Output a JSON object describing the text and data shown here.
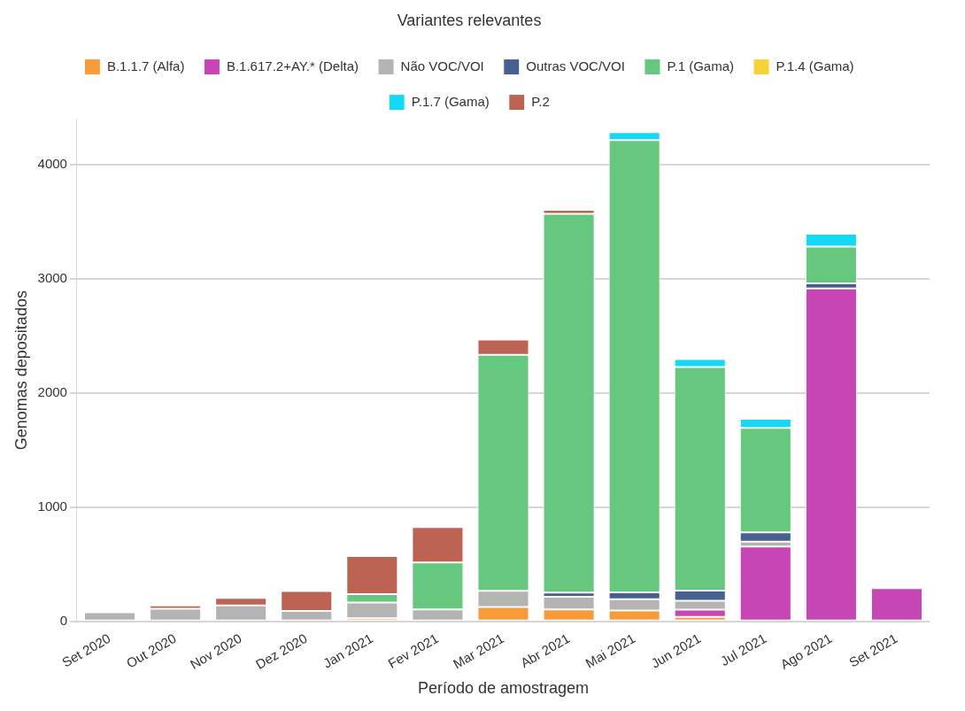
{
  "chart_data": {
    "type": "bar",
    "stacked": true,
    "title": "Variantes relevantes",
    "xlabel": "Período de amostragem",
    "ylabel": "Genomas depositados",
    "categories": [
      "Set 2020",
      "Out 2020",
      "Nov 2020",
      "Dez 2020",
      "Jan 2021",
      "Fev 2021",
      "Mar 2021",
      "Abr 2021",
      "Mai 2021",
      "Jun 2021",
      "Jul 2021",
      "Ago 2021",
      "Set 2021"
    ],
    "series": [
      {
        "name": "B.1.1.7 (Alfa)",
        "color": "#f99b3a",
        "values": [
          0,
          0,
          0,
          0,
          27,
          0,
          125,
          104,
          95,
          38,
          0,
          0,
          0
        ]
      },
      {
        "name": "B.1.617.2+AY.* (Delta)",
        "color": "#c845b5",
        "values": [
          0,
          0,
          0,
          0,
          0,
          0,
          0,
          0,
          0,
          65,
          655,
          2917,
          290
        ]
      },
      {
        "name": "Não VOC/VOI",
        "color": "#b4b4b4",
        "values": [
          80,
          110,
          140,
          90,
          137,
          105,
          142,
          110,
          98,
          77,
          42,
          null,
          0
        ]
      },
      {
        "name": "Outras VOC/VOI",
        "color": "#48608f",
        "values": [
          0,
          0,
          0,
          0,
          0,
          0,
          0,
          38,
          60,
          89,
          83,
          45,
          0
        ]
      },
      {
        "name": "P.1 (Gama)",
        "color": "#66c77f",
        "values": [
          0,
          0,
          0,
          0,
          75,
          411,
          2068,
          3318,
          3963,
          1959,
          914,
          321,
          0
        ]
      },
      {
        "name": "P.1.4 (Gama)",
        "color": "#f5d23a",
        "values": [
          0,
          0,
          0,
          0,
          0,
          0,
          0,
          0,
          0,
          0,
          0,
          0,
          0
        ]
      },
      {
        "name": "P.1.7 (Gama)",
        "color": "#14d9f5",
        "values": [
          0,
          0,
          0,
          0,
          0,
          0,
          0,
          0,
          70,
          71,
          80,
          113,
          0
        ]
      },
      {
        "name": "P.2",
        "color": "#bd6354",
        "values": [
          0,
          30,
          65,
          175,
          333,
          310,
          134,
          36,
          0,
          0,
          0,
          0,
          0
        ]
      }
    ],
    "ylim": [
      0,
      4400
    ],
    "yticks": [
      0,
      1000,
      2000,
      3000,
      4000
    ],
    "grid": "y",
    "legend": "top"
  }
}
